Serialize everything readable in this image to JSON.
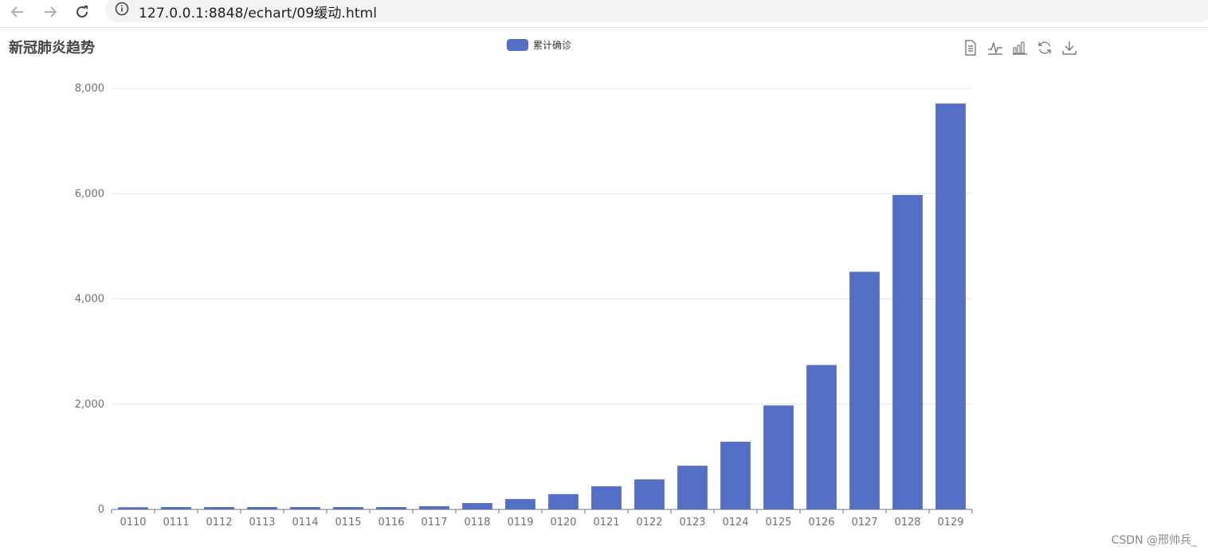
{
  "browser": {
    "url": "127.0.0.1:8848/echart/09缓动.html",
    "icons": [
      "back-arrow-icon",
      "forward-arrow-icon",
      "reload-icon",
      "info-icon"
    ]
  },
  "toolbox": {
    "icons": [
      "data-view-icon",
      "line-chart-icon",
      "bar-chart-icon",
      "restore-icon",
      "save-image-icon"
    ]
  },
  "watermark": "CSDN @邢帅兵_",
  "colors": {
    "bar": "#5470c6",
    "axis": "#6e7079",
    "grid": "#e0e6f1"
  },
  "chart_data": {
    "type": "bar",
    "title": "新冠肺炎趋势",
    "categories": [
      "0110",
      "0111",
      "0112",
      "0113",
      "0114",
      "0115",
      "0116",
      "0117",
      "0118",
      "0119",
      "0120",
      "0121",
      "0122",
      "0123",
      "0124",
      "0125",
      "0126",
      "0127",
      "0128",
      "0129"
    ],
    "series": [
      {
        "name": "累计确诊",
        "values": [
          41,
          45,
          45,
          45,
          45,
          45,
          45,
          62,
          121,
          198,
          291,
          440,
          571,
          830,
          1287,
          1975,
          2744,
          4515,
          5974,
          7711
        ]
      }
    ],
    "ylim": [
      0,
      8000
    ],
    "yticks": [
      "0",
      "2,000",
      "4,000",
      "6,000",
      "8,000"
    ],
    "ytick_values": [
      0,
      2000,
      4000,
      6000,
      8000
    ],
    "grid": true,
    "legend_position": "top-center"
  }
}
